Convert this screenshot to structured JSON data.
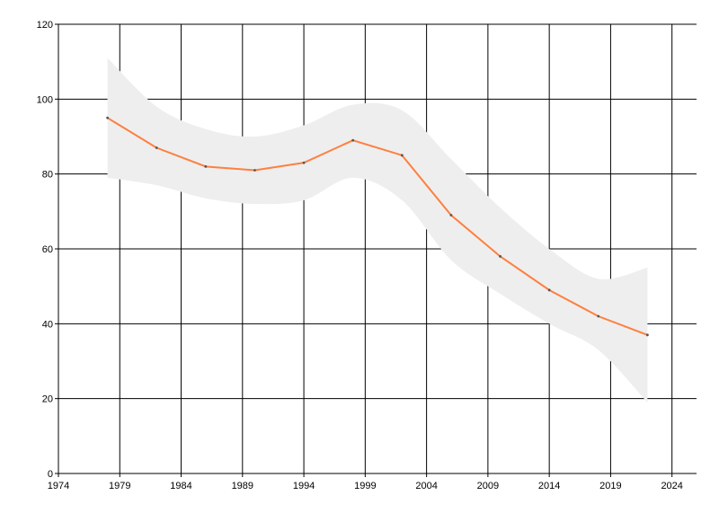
{
  "chart_data": {
    "type": "line",
    "title": "",
    "xlabel": "",
    "ylabel": "",
    "xlim": [
      1974,
      2026
    ],
    "ylim": [
      0,
      120
    ],
    "x_ticks": [
      1974,
      1979,
      1984,
      1989,
      1994,
      1999,
      2004,
      2009,
      2014,
      2019,
      2024
    ],
    "y_ticks": [
      0,
      20,
      40,
      60,
      80,
      100,
      120
    ],
    "grid": true,
    "x": [
      1978,
      1982,
      1986,
      1990,
      1994,
      1998,
      2002,
      2006,
      2010,
      2014,
      2018,
      2022
    ],
    "series": [
      {
        "values": [
          95,
          87,
          82,
          81,
          83,
          89,
          85,
          69,
          58,
          49,
          42,
          37
        ],
        "color": "#ff7f3f"
      }
    ],
    "band": {
      "upper": [
        111,
        98,
        92,
        90,
        93,
        98.5,
        97,
        84,
        71,
        60,
        52,
        55
      ],
      "lower": [
        79,
        77,
        73.5,
        72,
        73,
        79,
        73,
        57,
        48,
        40,
        33,
        19
      ],
      "color": "#eeeeee"
    },
    "colors": {
      "grid": "#000000",
      "tick_label": "#000000"
    }
  }
}
